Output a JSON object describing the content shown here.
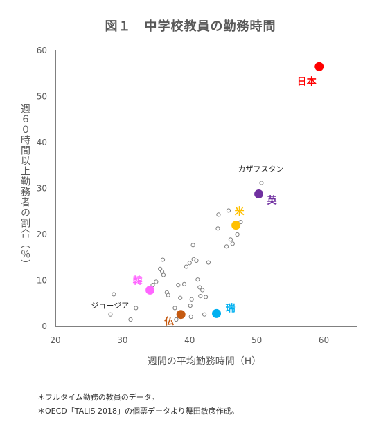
{
  "chart_data": {
    "type": "scatter",
    "title": "図１　中学校教員の勤務時間",
    "xlabel": "週間の平均勤務時間（H）",
    "ylabel": "週６０時間以上勤務者の割合（％）",
    "xlim": [
      20,
      65
    ],
    "ylim": [
      0,
      60
    ],
    "xticks": [
      "20",
      "30",
      "40",
      "50",
      "60"
    ],
    "yticks": [
      "0",
      "10",
      "20",
      "30",
      "40",
      "50",
      "60"
    ],
    "grid": false,
    "others": {
      "color": "#7f7f7f",
      "points": [
        [
          28.2,
          2.6
        ],
        [
          28.7,
          7.0
        ],
        [
          31.2,
          1.5
        ],
        [
          32.0,
          4.0
        ],
        [
          34.5,
          9.0
        ],
        [
          35.0,
          9.7
        ],
        [
          35.6,
          12.5
        ],
        [
          35.9,
          11.9
        ],
        [
          36.0,
          14.5
        ],
        [
          36.1,
          11.2
        ],
        [
          36.6,
          7.4
        ],
        [
          36.8,
          6.8
        ],
        [
          37.8,
          4.0
        ],
        [
          38.0,
          1.5
        ],
        [
          38.3,
          9.0
        ],
        [
          38.6,
          6.2
        ],
        [
          38.4,
          2.2
        ],
        [
          39.2,
          9.2
        ],
        [
          39.5,
          13.0
        ],
        [
          40.0,
          13.8
        ],
        [
          40.1,
          4.5
        ],
        [
          40.2,
          2.1
        ],
        [
          40.5,
          17.7
        ],
        [
          40.6,
          14.6
        ],
        [
          40.3,
          5.9
        ],
        [
          41.0,
          14.3
        ],
        [
          41.2,
          10.2
        ],
        [
          41.5,
          8.5
        ],
        [
          41.6,
          6.6
        ],
        [
          41.9,
          7.9
        ],
        [
          42.2,
          2.6
        ],
        [
          42.4,
          6.4
        ],
        [
          42.8,
          13.9
        ],
        [
          44.2,
          21.3
        ],
        [
          44.3,
          24.3
        ],
        [
          45.5,
          17.4
        ],
        [
          45.8,
          25.2
        ],
        [
          46.1,
          18.9
        ],
        [
          46.4,
          18.0
        ],
        [
          47.1,
          20.0
        ],
        [
          47.6,
          22.7
        ],
        [
          50.7,
          31.2
        ]
      ]
    },
    "highlighted": [
      {
        "label": "日本",
        "x": 59.3,
        "y": 56.5,
        "color": "#ff0000"
      },
      {
        "label": "英",
        "x": 50.3,
        "y": 28.8,
        "color": "#7030a0"
      },
      {
        "label": "米",
        "x": 46.9,
        "y": 22.0,
        "color": "#ffc000"
      },
      {
        "label": "韓",
        "x": 34.1,
        "y": 7.9,
        "color": "#ff66ff"
      },
      {
        "label": "仏",
        "x": 38.7,
        "y": 2.6,
        "color": "#c55a11"
      },
      {
        "label": "瑞",
        "x": 44.0,
        "y": 2.8,
        "color": "#00b0f0"
      }
    ],
    "annotations": [
      {
        "text": "カザフスタン",
        "x": 50.6,
        "y": 33.7,
        "color": "#262626"
      },
      {
        "text": "ジョージア",
        "x": 25.3,
        "y": 4.0,
        "color": "#262626"
      }
    ]
  },
  "notes": [
    "＊フルタイム勤務の教員のデータ。",
    "＊OECD「TALIS 2018」の個票データより舞田敏彦作成。"
  ]
}
